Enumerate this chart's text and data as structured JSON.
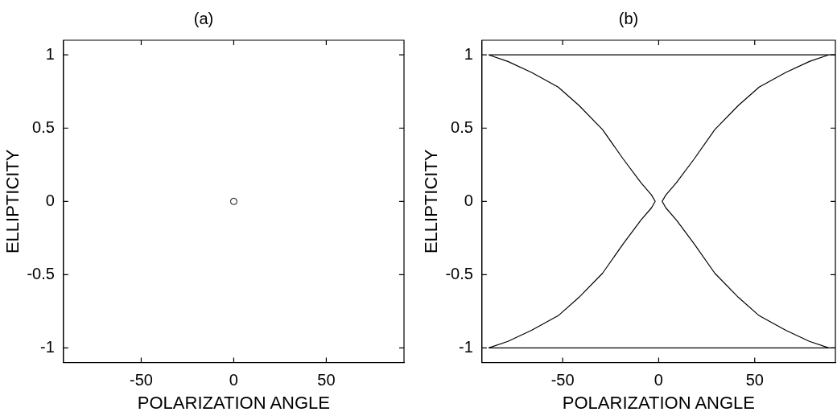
{
  "chart_data": [
    {
      "type": "scatter",
      "title": "(a)",
      "xlabel": "POLARIZATION ANGLE",
      "ylabel": "ELLIPTICITY",
      "x": [
        0
      ],
      "values": [
        0
      ],
      "color": "#000000",
      "marker": "circle",
      "xlim": [
        -92,
        92
      ],
      "ylim": [
        -1.1,
        1.1
      ],
      "xticks": [
        -50,
        0,
        50
      ],
      "yticks": [
        -1,
        -0.5,
        0,
        0.5,
        1
      ]
    },
    {
      "type": "line",
      "title": "(b)",
      "xlabel": "POLARIZATION ANGLE",
      "ylabel": "ELLIPTICITY",
      "marker": "none",
      "line_style": "solid",
      "xlim": [
        -92,
        92
      ],
      "ylim": [
        -1.1,
        1.1
      ],
      "xticks": [
        -50,
        0,
        50
      ],
      "yticks": [
        -1,
        -0.5,
        0,
        0.5,
        1
      ],
      "series": [
        {
          "color": "#000000",
          "x": [
            -88.5,
            92
          ],
          "values": [
            1,
            1
          ]
        },
        {
          "color": "#000000",
          "x": [
            -88.5,
            92
          ],
          "values": [
            -1,
            -1
          ]
        },
        {
          "color": "#000000",
          "x": [
            -88.5,
            -78.5,
            -66.2,
            -52.3,
            -41.5,
            -29.2,
            -18.5,
            -9.2,
            -3.8,
            -1.8,
            -3.8,
            -9.2,
            -18.5,
            -29.2,
            -41.5,
            -52.3,
            -66.2,
            -78.5,
            -88.5
          ],
          "values": [
            1,
            0.955,
            0.88,
            0.78,
            0.655,
            0.49,
            0.29,
            0.127,
            0.045,
            0,
            -0.045,
            -0.127,
            -0.29,
            -0.49,
            -0.655,
            -0.78,
            -0.88,
            -0.955,
            -1
          ]
        },
        {
          "color": "#000000",
          "x": [
            88.5,
            78.5,
            66.2,
            52.3,
            41.5,
            29.2,
            18.5,
            9.2,
            3.8,
            1.8,
            3.8,
            9.2,
            18.5,
            29.2,
            41.5,
            52.3,
            66.2,
            78.5,
            88.5
          ],
          "values": [
            1,
            0.955,
            0.88,
            0.78,
            0.655,
            0.49,
            0.29,
            0.127,
            0.045,
            0,
            -0.045,
            -0.127,
            -0.29,
            -0.49,
            -0.655,
            -0.78,
            -0.88,
            -0.955,
            -1
          ]
        }
      ]
    }
  ]
}
